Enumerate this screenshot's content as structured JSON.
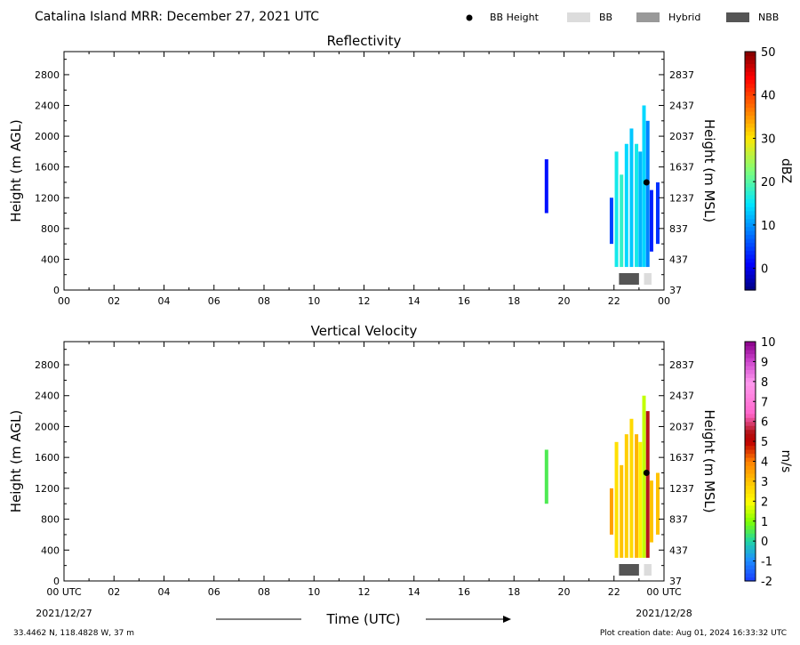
{
  "header": {
    "title": "Catalina Island MRR:  December 27, 2021 UTC",
    "legend": [
      {
        "label": "BB Height",
        "swatch": "dot",
        "color": "#000000"
      },
      {
        "label": "BB",
        "swatch": "box",
        "color": "#dcdcdc"
      },
      {
        "label": "Hybrid",
        "swatch": "box",
        "color": "#999999"
      },
      {
        "label": "NBB",
        "swatch": "box",
        "color": "#555555"
      }
    ]
  },
  "footer": {
    "location": "33.4462 N, 118.4828 W, 37 m",
    "creation": "Plot creation date: Aug 01, 2024 16:33:32 UTC",
    "time_label": "Time (UTC)",
    "start_date": "2021/12/27",
    "end_date": "2021/12/28"
  },
  "chart_data": [
    {
      "type": "heatmap",
      "title": "Reflectivity",
      "ylabel": "Height (m AGL)",
      "y2label": "Height (m MSL)",
      "xlim": [
        0,
        24
      ],
      "ylim": [
        0,
        3100
      ],
      "x_ticks": [
        "00",
        "02",
        "04",
        "06",
        "08",
        "10",
        "12",
        "14",
        "16",
        "18",
        "20",
        "22",
        "00"
      ],
      "y_ticks": [
        0,
        400,
        800,
        1200,
        1600,
        2000,
        2400,
        2800
      ],
      "y2_ticks": [
        37,
        437,
        837,
        1237,
        1637,
        2037,
        2437,
        2837
      ],
      "colorbar": {
        "label": "dBZ",
        "range": [
          -5,
          50
        ],
        "ticks": [
          0,
          10,
          20,
          30,
          40,
          50
        ]
      },
      "bb_height": [
        {
          "time": 23.3,
          "height": 1400
        }
      ],
      "bb_type": [
        {
          "type": "NBB",
          "start": 22.2,
          "end": 23.0
        },
        {
          "type": "BB",
          "start": 23.2,
          "end": 23.5
        }
      ],
      "echoes": [
        {
          "time": 19.3,
          "bottom": 1000,
          "top": 1700,
          "value": 2
        },
        {
          "time": 21.9,
          "bottom": 600,
          "top": 1200,
          "value": 5
        },
        {
          "time": 22.1,
          "bottom": 300,
          "top": 1800,
          "value": 16
        },
        {
          "time": 22.3,
          "bottom": 300,
          "top": 1500,
          "value": 18
        },
        {
          "time": 22.5,
          "bottom": 300,
          "top": 1900,
          "value": 14
        },
        {
          "time": 22.7,
          "bottom": 300,
          "top": 2100,
          "value": 13
        },
        {
          "time": 22.9,
          "bottom": 300,
          "top": 1900,
          "value": 16
        },
        {
          "time": 23.05,
          "bottom": 300,
          "top": 1800,
          "value": 12
        },
        {
          "time": 23.2,
          "bottom": 300,
          "top": 2400,
          "value": 14
        },
        {
          "time": 23.35,
          "bottom": 300,
          "top": 2200,
          "value": 9
        },
        {
          "time": 23.5,
          "bottom": 500,
          "top": 1300,
          "value": 3
        },
        {
          "time": 23.75,
          "bottom": 600,
          "top": 1400,
          "value": 4
        }
      ]
    },
    {
      "type": "heatmap",
      "title": "Vertical Velocity",
      "ylabel": "Height (m AGL)",
      "y2label": "Height (m MSL)",
      "xlim": [
        0,
        24
      ],
      "ylim": [
        0,
        3100
      ],
      "x_ticks": [
        "00 UTC",
        "02",
        "04",
        "06",
        "08",
        "10",
        "12",
        "14",
        "16",
        "18",
        "20",
        "22",
        "00 UTC"
      ],
      "y_ticks": [
        0,
        400,
        800,
        1200,
        1600,
        2000,
        2400,
        2800
      ],
      "y2_ticks": [
        37,
        437,
        837,
        1237,
        1637,
        2037,
        2437,
        2837
      ],
      "colorbar": {
        "label": "m/s",
        "range": [
          -2,
          10
        ],
        "ticks": [
          -2,
          -1,
          0,
          1,
          2,
          3,
          4,
          5,
          6,
          7,
          8,
          9,
          10
        ]
      },
      "bb_height": [
        {
          "time": 23.3,
          "height": 1400
        }
      ],
      "bb_type": [
        {
          "type": "NBB",
          "start": 22.2,
          "end": 23.0
        },
        {
          "type": "BB",
          "start": 23.2,
          "end": 23.5
        }
      ],
      "echoes": [
        {
          "time": 19.3,
          "bottom": 1000,
          "top": 1700,
          "value": 0.5
        },
        {
          "time": 21.9,
          "bottom": 600,
          "top": 1200,
          "value": 3.5
        },
        {
          "time": 22.1,
          "bottom": 300,
          "top": 1800,
          "value": 2.5
        },
        {
          "time": 22.3,
          "bottom": 300,
          "top": 1500,
          "value": 3.0
        },
        {
          "time": 22.5,
          "bottom": 300,
          "top": 1900,
          "value": 2.8
        },
        {
          "time": 22.7,
          "bottom": 300,
          "top": 2100,
          "value": 2.6
        },
        {
          "time": 22.9,
          "bottom": 300,
          "top": 1900,
          "value": 3.2
        },
        {
          "time": 23.05,
          "bottom": 300,
          "top": 1800,
          "value": 2.2
        },
        {
          "time": 23.2,
          "bottom": 300,
          "top": 2400,
          "value": 1.5
        },
        {
          "time": 23.35,
          "bottom": 300,
          "top": 2200,
          "value": 5.5
        },
        {
          "time": 23.5,
          "bottom": 500,
          "top": 1300,
          "value": 3.0
        },
        {
          "time": 23.75,
          "bottom": 600,
          "top": 1400,
          "value": 3.0
        }
      ]
    }
  ]
}
